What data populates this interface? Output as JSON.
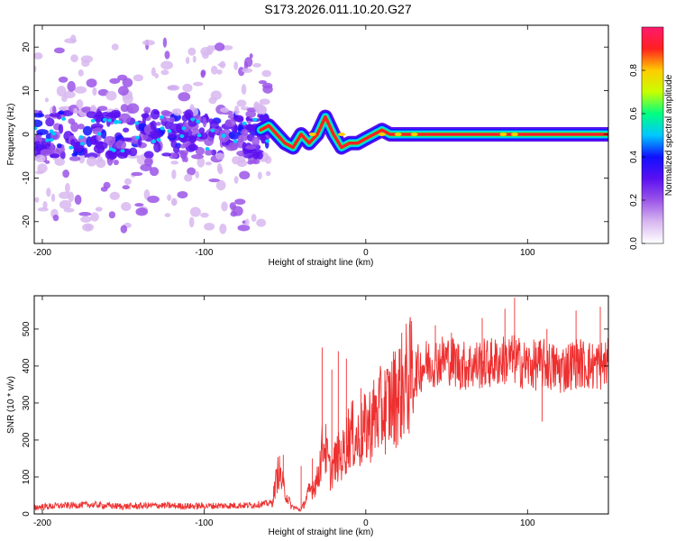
{
  "title": "S173.2026.011.10.20.G27",
  "colors": {
    "snr_line": "#ee3030",
    "colormap": [
      "#ffffff",
      "#d8b8f0",
      "#9b55e8",
      "#5a10f0",
      "#1010ff",
      "#00c8ff",
      "#00ff80",
      "#c8ff00",
      "#ffcc00",
      "#ff2020",
      "#ff1a6e"
    ]
  },
  "chart_data": [
    {
      "type": "heatmap",
      "title": "",
      "xlabel": "Height of straight line (km)",
      "ylabel": "Frequency (Hz)",
      "xlim": [
        -205,
        150
      ],
      "ylim": [
        -25,
        25
      ],
      "xticks": [
        -200,
        -100,
        0,
        100
      ],
      "xtick_labels": [
        "-200",
        "-100",
        "0",
        "100"
      ],
      "yticks": [
        -20,
        -10,
        0,
        10,
        20
      ],
      "ytick_labels": [
        "-20",
        "-10",
        "0",
        "10",
        "20"
      ],
      "colorbar": {
        "label": "Normalized spectral amplitude",
        "range": [
          0,
          1
        ],
        "ticks": [
          0.0,
          0.2,
          0.4,
          0.6,
          0.8
        ],
        "tick_labels": [
          "0.0",
          "0.2",
          "0.4",
          "0.6",
          "0.8"
        ]
      },
      "ridge": {
        "x": [
          -65,
          -60,
          -55,
          -50,
          -45,
          -40,
          -35,
          -30,
          -25,
          -20,
          -15,
          -10,
          -5,
          0,
          5,
          10,
          15,
          20,
          150
        ],
        "freq": [
          1,
          2,
          0,
          -2,
          -3,
          0,
          -2,
          0,
          4,
          0,
          -3,
          -2,
          -2,
          -1,
          0,
          1,
          0,
          0,
          0
        ]
      }
    },
    {
      "type": "line",
      "title": "",
      "xlabel": "Height of straight line (km)",
      "ylabel": "SNR (10 * v/v)",
      "xlim": [
        -205,
        150
      ],
      "ylim": [
        0,
        590
      ],
      "xticks": [
        -200,
        -100,
        0,
        100
      ],
      "xtick_labels": [
        "-200",
        "-100",
        "0",
        "100"
      ],
      "yticks": [
        0,
        100,
        200,
        300,
        400,
        500
      ],
      "ytick_labels": [
        "0",
        "100",
        "200",
        "300",
        "400",
        "500"
      ],
      "series": [
        {
          "name": "SNR",
          "x": [
            -205,
            -190,
            -170,
            -150,
            -130,
            -110,
            -90,
            -70,
            -58,
            -54,
            -50,
            -46,
            -40,
            -35,
            -30,
            -26,
            -22,
            -18,
            -14,
            -10,
            -5,
            0,
            5,
            10,
            15,
            20,
            25,
            30,
            35,
            40,
            50,
            60,
            70,
            80,
            90,
            100,
            110,
            120,
            130,
            140,
            150
          ],
          "y": [
            18,
            22,
            25,
            20,
            23,
            21,
            22,
            24,
            30,
            120,
            60,
            20,
            10,
            60,
            90,
            200,
            110,
            150,
            160,
            220,
            200,
            230,
            260,
            280,
            300,
            330,
            360,
            380,
            400,
            410,
            420,
            400,
            405,
            410,
            420,
            400,
            405,
            390,
            410,
            400,
            405
          ],
          "spikes": [
            {
              "x": -51,
              "y": 160
            },
            {
              "x": -40,
              "y": 130
            },
            {
              "x": -33,
              "y": 150
            },
            {
              "x": -27,
              "y": 450
            },
            {
              "x": -21,
              "y": 390
            },
            {
              "x": -17,
              "y": 440
            },
            {
              "x": -12,
              "y": 420
            },
            {
              "x": -3,
              "y": 340
            },
            {
              "x": 12,
              "y": 360
            },
            {
              "x": 43,
              "y": 510
            },
            {
              "x": 53,
              "y": 490
            },
            {
              "x": 72,
              "y": 530
            },
            {
              "x": 86,
              "y": 555
            },
            {
              "x": 92,
              "y": 585
            },
            {
              "x": 112,
              "y": 500
            },
            {
              "x": 130,
              "y": 550
            },
            {
              "x": 145,
              "y": 560
            },
            {
              "x": 109,
              "y": 250
            }
          ]
        }
      ]
    }
  ]
}
